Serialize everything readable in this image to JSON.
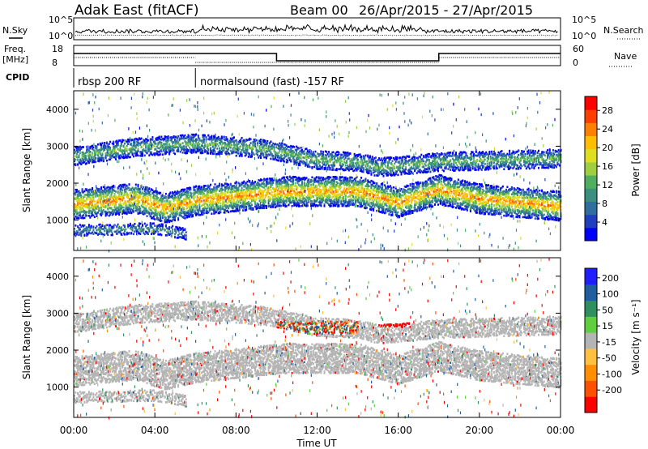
{
  "header": {
    "station": "Adak East (fitACF)",
    "beam": "Beam 00",
    "date_range": "26/Apr/2015 - 27/Apr/2015"
  },
  "noise_panel": {
    "left_label": "N.Sky",
    "right_label": "N.Search",
    "left_ticks": [
      "10^5",
      "10^0"
    ],
    "right_ticks": [
      "10^5",
      "10^0"
    ]
  },
  "freq_panel": {
    "left_label_line1": "Freq.",
    "left_label_line2": "[MHz]",
    "right_label": "Nave",
    "left_ticks": [
      "18",
      "8"
    ],
    "right_ticks": [
      "60",
      "0"
    ]
  },
  "cpid_panel": {
    "label": "CPID",
    "segments": [
      {
        "name": "rbsp 200 RF",
        "start_hour": 0,
        "end_hour": 6
      },
      {
        "name": "normalsound (fast) -157 RF",
        "start_hour": 6,
        "end_hour": 24
      }
    ]
  },
  "colors": {
    "power_scale": [
      "#0000ff",
      "#1f3fbf",
      "#2f6f9f",
      "#3a8f7f",
      "#4faf5f",
      "#9fcf3f",
      "#dfdf1f",
      "#ffbf00",
      "#ff7f00",
      "#ff3f00",
      "#ff0000"
    ],
    "velocity_scale": [
      "#1f1fff",
      "#1f5f9f",
      "#2f8f5f",
      "#5fcf3f",
      "#b4b4b4",
      "#ffbf3f",
      "#ff8f00",
      "#ff4f00",
      "#ff0000"
    ]
  },
  "chart_data": [
    {
      "type": "heatmap",
      "title": "",
      "xlabel": "Time UT",
      "ylabel": "Slant Range [km]",
      "xlim": [
        0,
        24
      ],
      "ylim": [
        180,
        4500
      ],
      "x_ticks": [
        "00:00",
        "04:00",
        "08:00",
        "12:00",
        "16:00",
        "20:00",
        "00:00"
      ],
      "y_ticks": [
        "1000",
        "2000",
        "3000",
        "4000"
      ],
      "colorbar_label": "Power [dB]",
      "colorbar_ticks": [
        "4",
        "8",
        "12",
        "16",
        "20",
        "24",
        "28"
      ],
      "colorbar_range": [
        0,
        31
      ],
      "bands": [
        {
          "name": "E/1-hop band",
          "range_km": [
            [
              0,
              1450
            ],
            [
              3,
              1620
            ],
            [
              4.5,
              1350
            ],
            [
              6,
              1550
            ],
            [
              9.5,
              1750
            ],
            [
              10.5,
              1800
            ],
            [
              14,
              1800
            ],
            [
              16,
              1500
            ],
            [
              18,
              1850
            ],
            [
              20,
              1600
            ],
            [
              24,
              1400
            ]
          ],
          "width_km": 400,
          "peak_power_db": 24
        },
        {
          "name": "upper band",
          "range_km": [
            [
              0,
              2750
            ],
            [
              3,
              3000
            ],
            [
              6,
              3100
            ],
            [
              9.5,
              2950
            ],
            [
              12,
              2650
            ],
            [
              14,
              2600
            ],
            [
              15,
              2450
            ],
            [
              18,
              2600
            ],
            [
              24,
              2700
            ]
          ],
          "width_km": 250,
          "peak_power_db": 14
        },
        {
          "name": "near-range band",
          "range_km": [
            [
              0,
              750
            ],
            [
              4,
              800
            ],
            [
              5.5,
              650
            ]
          ],
          "width_km": 150,
          "peak_power_db": 10
        }
      ]
    },
    {
      "type": "heatmap",
      "title": "",
      "xlabel": "Time UT",
      "ylabel": "Slant Range [km]",
      "xlim": [
        0,
        24
      ],
      "ylim": [
        180,
        4500
      ],
      "x_ticks": [
        "00:00",
        "04:00",
        "08:00",
        "12:00",
        "16:00",
        "20:00",
        "00:00"
      ],
      "y_ticks": [
        "1000",
        "2000",
        "3000",
        "4000"
      ],
      "colorbar_label": "Velocity [m s⁻¹]",
      "colorbar_ticks": [
        "200",
        "100",
        "50",
        "15",
        "-15",
        "-50",
        "-100",
        "-200"
      ],
      "colorbar_range": [
        -250,
        250
      ],
      "bands": [
        {
          "name": "ground scatter",
          "velocity_ms": 0
        },
        {
          "name": "ionospheric scatter",
          "time_range_h": [
            10,
            14
          ],
          "range_km": [
            2500,
            2750
          ],
          "velocity_ms": [
            -150,
            200
          ]
        },
        {
          "name": "ionospheric scatter",
          "time_range_h": [
            15,
            16.5
          ],
          "range_km": [
            2700,
            3000
          ],
          "velocity_ms": -120
        }
      ]
    }
  ]
}
